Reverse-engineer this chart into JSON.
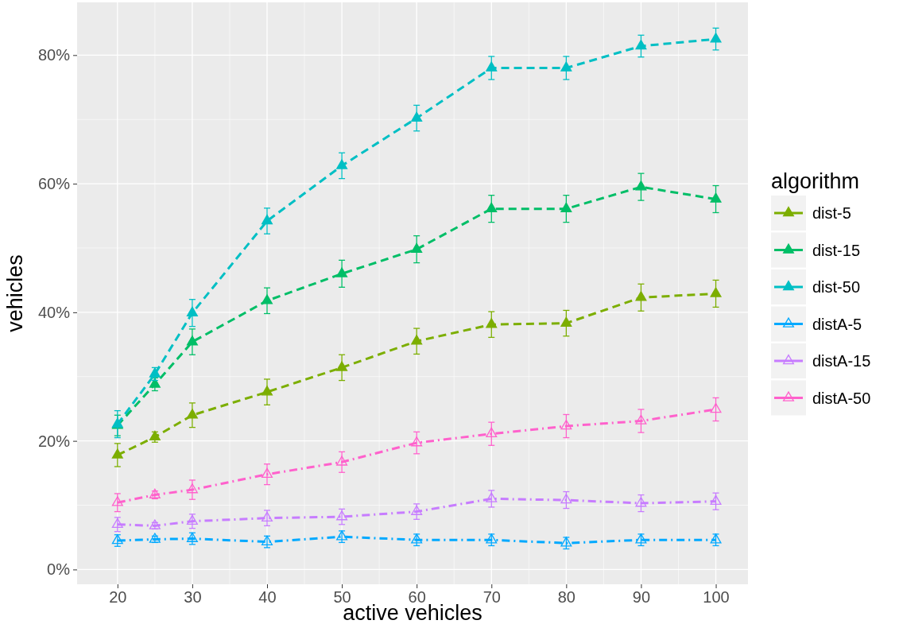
{
  "chart_data": {
    "type": "line",
    "xlabel": "active vehicles",
    "ylabel": "vehicles",
    "legend_title": "algorithm",
    "legend": "right",
    "grid": true,
    "marker": "triangle",
    "x": [
      20,
      25,
      30,
      40,
      50,
      60,
      70,
      80,
      90,
      100
    ],
    "xlim": [
      14.6,
      104.3
    ],
    "xticks": [
      20,
      30,
      40,
      50,
      60,
      70,
      80,
      90,
      100
    ],
    "ylim": [
      -2.3,
      88.2
    ],
    "yticks": [
      {
        "value": 0,
        "label": "0%"
      },
      {
        "value": 20,
        "label": "20%"
      },
      {
        "value": 40,
        "label": "40%"
      },
      {
        "value": 60,
        "label": "60%"
      },
      {
        "value": 80,
        "label": "80%"
      }
    ],
    "series": [
      {
        "name": "dist-5",
        "color": "#7cae00",
        "line_style": "dashed",
        "values": [
          17.8,
          20.6,
          24.0,
          27.6,
          31.4,
          35.5,
          38.1,
          38.3,
          42.3,
          42.9
        ],
        "errors": [
          1.8,
          0.8,
          1.9,
          2.0,
          2.0,
          2.0,
          2.0,
          2.0,
          2.1,
          2.1
        ]
      },
      {
        "name": "dist-15",
        "color": "#00be67",
        "line_style": "dashed",
        "values": [
          22.4,
          28.8,
          35.4,
          41.8,
          46.0,
          49.8,
          56.1,
          56.1,
          59.5,
          57.6
        ],
        "errors": [
          1.6,
          1.0,
          2.0,
          2.0,
          2.1,
          2.1,
          2.1,
          2.1,
          2.1,
          2.1
        ]
      },
      {
        "name": "dist-50",
        "color": "#00bfc4",
        "line_style": "dashed",
        "values": [
          22.6,
          30.4,
          39.9,
          54.2,
          62.8,
          70.2,
          78.0,
          78.0,
          81.4,
          82.5
        ],
        "errors": [
          2.1,
          1.0,
          2.1,
          2.0,
          2.0,
          2.0,
          1.8,
          1.8,
          1.7,
          1.7
        ]
      },
      {
        "name": "distA-5",
        "color": "#00a9ff",
        "line_style": "dashdot",
        "marker": "triangle-open",
        "values": [
          4.5,
          4.7,
          4.8,
          4.3,
          5.1,
          4.6,
          4.6,
          4.1,
          4.6,
          4.6
        ],
        "errors": [
          0.9,
          0.5,
          0.9,
          0.9,
          0.9,
          0.9,
          0.9,
          0.9,
          0.9,
          0.9
        ]
      },
      {
        "name": "distA-15",
        "color": "#c77cff",
        "line_style": "dashdot",
        "marker": "triangle-open",
        "values": [
          7.0,
          6.8,
          7.5,
          8.0,
          8.2,
          9.0,
          11.0,
          10.8,
          10.3,
          10.6
        ],
        "errors": [
          1.1,
          0.5,
          1.1,
          1.2,
          1.2,
          1.2,
          1.3,
          1.3,
          1.3,
          1.3
        ]
      },
      {
        "name": "distA-50",
        "color": "#ff61cc",
        "line_style": "dashdot",
        "marker": "triangle-open",
        "values": [
          10.4,
          11.6,
          12.4,
          14.8,
          16.7,
          19.7,
          21.1,
          22.3,
          23.1,
          24.9
        ],
        "errors": [
          1.4,
          0.6,
          1.5,
          1.6,
          1.6,
          1.7,
          1.8,
          1.8,
          1.8,
          1.8
        ]
      }
    ]
  }
}
